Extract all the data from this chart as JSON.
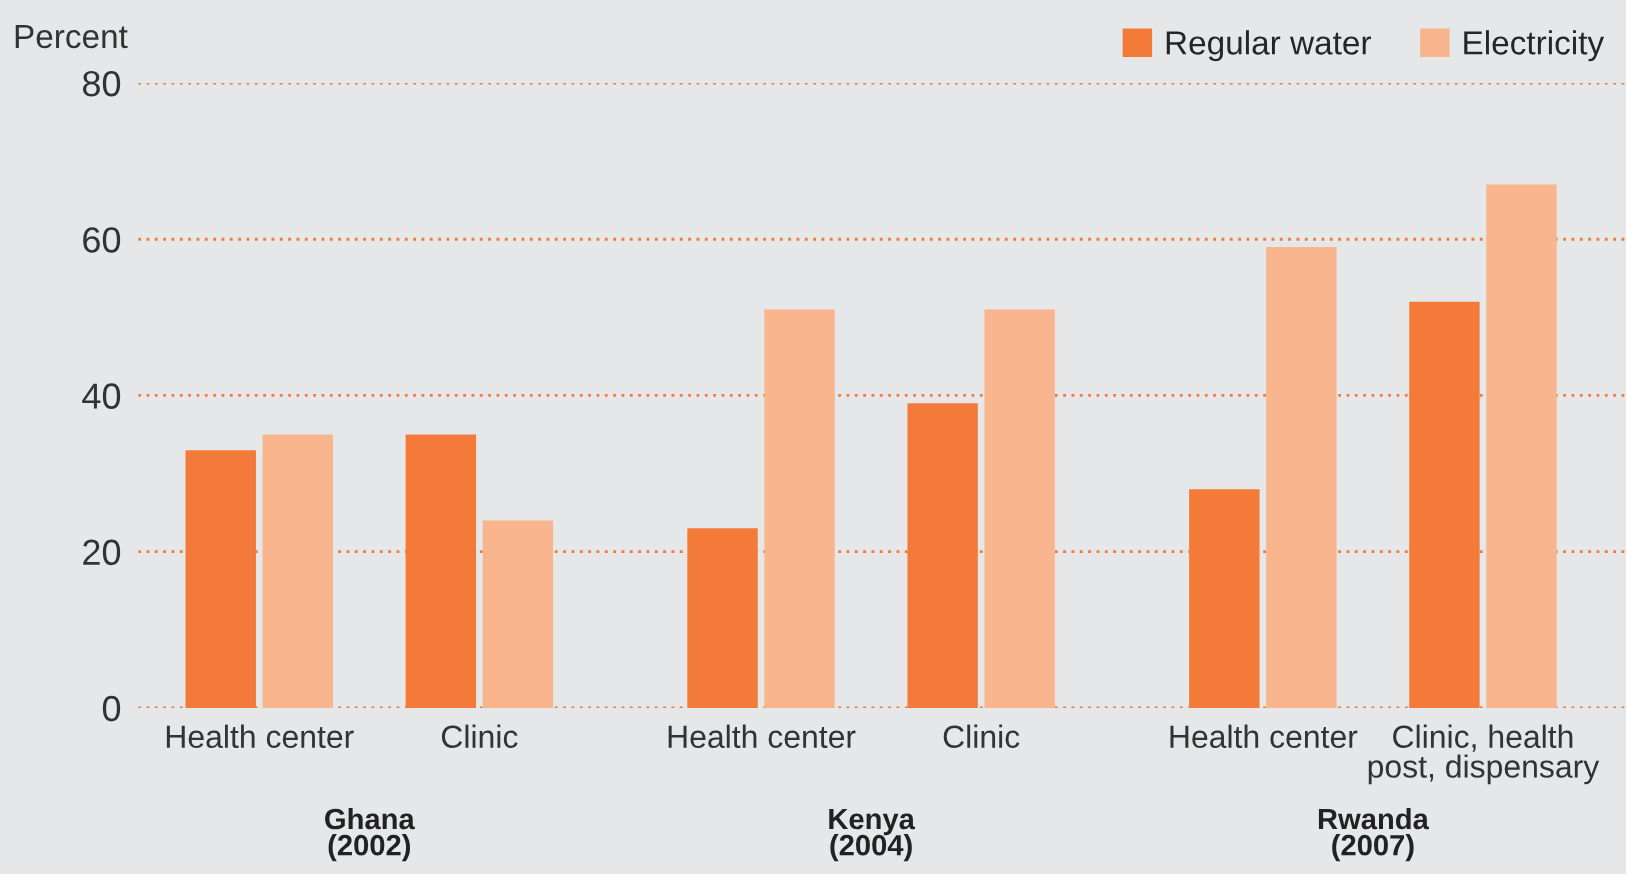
{
  "chart_data": {
    "type": "bar",
    "ylabel": "Percent",
    "categories": [
      "Health center",
      "Clinic",
      "Health center",
      "Clinic",
      "Health center",
      "Clinic, health\npost, dispensary"
    ],
    "series": [
      {
        "name": "Regular water",
        "color": "#f47a3a",
        "values": [
          33,
          35,
          23,
          39,
          28,
          52
        ]
      },
      {
        "name": "Electricity",
        "color": "#f9b68e",
        "values": [
          35,
          24,
          51,
          51,
          59,
          67
        ]
      }
    ],
    "ylim": [
      0,
      80
    ],
    "yticks": [
      0,
      20,
      40,
      60,
      80
    ],
    "grid": "y",
    "legend": "top right",
    "annotations": [
      "Ghana\n(2002)",
      "Kenya\n(2004)",
      "Rwanda\n(2007)"
    ]
  }
}
